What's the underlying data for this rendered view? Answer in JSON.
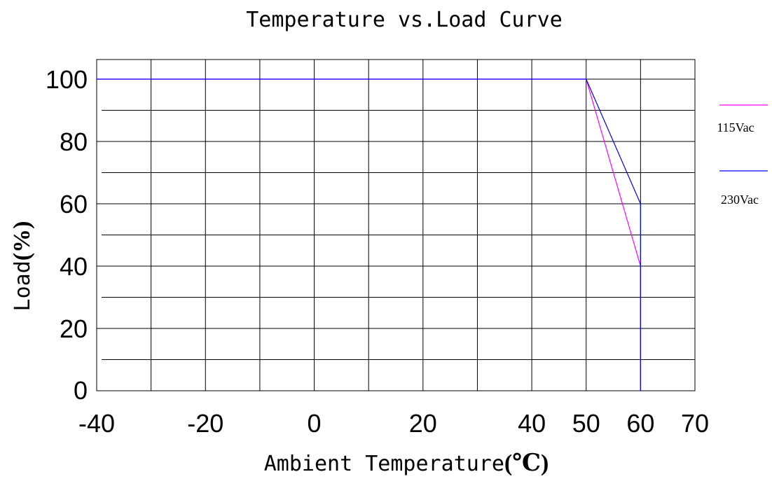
{
  "chart_data": {
    "type": "line",
    "title": "Temperature vs.Load Curve",
    "xlabel": "Ambient Temperature",
    "xlabel_unit": "(℃)",
    "ylabel": "Load",
    "ylabel_unit": "(%)",
    "x_tick_labels": [
      "-40",
      "-20",
      "0",
      "20",
      "40",
      "50",
      "60",
      "70"
    ],
    "y_tick_labels": [
      "0",
      "20",
      "40",
      "60",
      "80",
      "100"
    ],
    "xlim": [
      -40,
      70
    ],
    "ylim": [
      0,
      100
    ],
    "grid": true,
    "legend_position": "right",
    "series": [
      {
        "name": "115Vac",
        "color": "#ff00ff",
        "x": [
          -40,
          50,
          60,
          60
        ],
        "y": [
          100,
          100,
          40,
          0
        ]
      },
      {
        "name": "230Vac",
        "color": "#0000ff",
        "x": [
          -40,
          50,
          60,
          60
        ],
        "y": [
          100,
          100,
          60,
          0
        ]
      }
    ]
  }
}
